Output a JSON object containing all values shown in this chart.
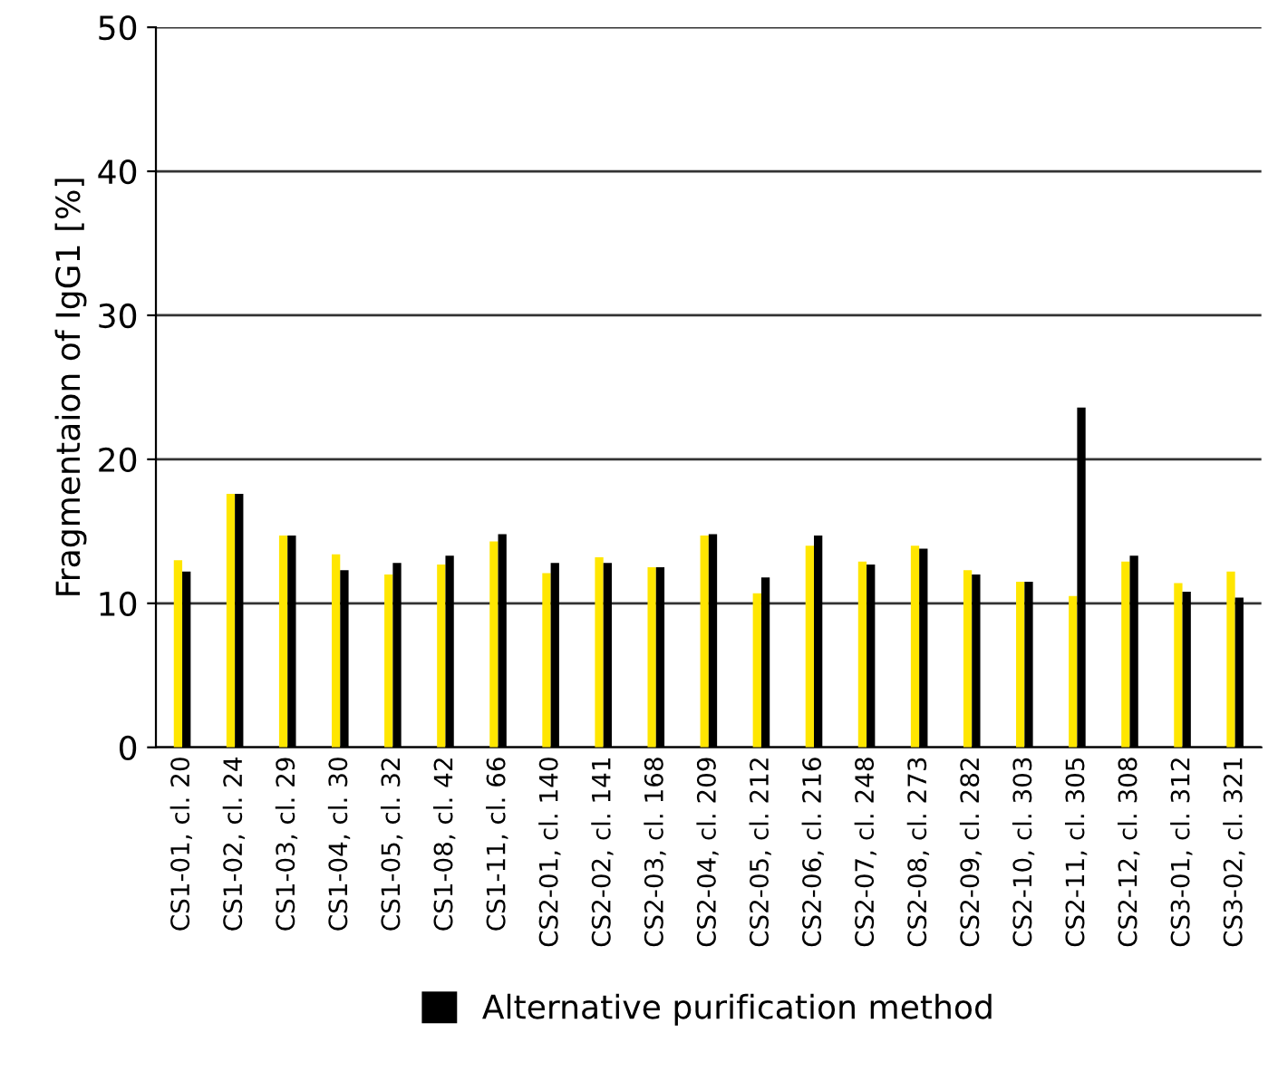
{
  "chart_data": {
    "type": "bar",
    "ylabel": "Fragmentaion of IgG1 [%]",
    "categories": [
      "CS1-01, cl. 20",
      "CS1-02, cl. 24",
      "CS1-03, cl. 29",
      "CS1-04, cl. 30",
      "CS1-05, cl. 32",
      "CS1-08, cl. 42",
      "CS1-11, cl. 66",
      "CS2-01, cl. 140",
      "CS2-02, cl. 141",
      "CS2-03, cl. 168",
      "CS2-04, cl. 209",
      "CS2-05, cl. 212",
      "CS2-06, cl. 216",
      "CS2-07, cl. 248",
      "CS2-08, cl. 273",
      "CS2-09, cl. 282",
      "CS2-10, cl. 303",
      "CS2-11, cl. 305",
      "CS2-12, cl. 308",
      "CS3-01, cl. 312",
      "CS3-02, cl. 321"
    ],
    "series": [
      {
        "color": "#ffe600",
        "values": [
          13.0,
          17.6,
          14.7,
          13.4,
          12.0,
          12.7,
          14.3,
          12.1,
          13.2,
          12.5,
          14.7,
          10.7,
          14.0,
          12.9,
          14.0,
          12.3,
          11.5,
          10.5,
          12.9,
          11.4,
          12.2
        ]
      },
      {
        "name": "Alternative purification method",
        "color": "#000000",
        "values": [
          12.2,
          17.6,
          14.7,
          12.3,
          12.8,
          13.3,
          14.8,
          12.8,
          12.8,
          12.5,
          14.8,
          11.8,
          14.7,
          12.7,
          13.8,
          12.0,
          11.5,
          23.6,
          13.3,
          10.8,
          10.4
        ]
      }
    ],
    "ylim": [
      0,
      50
    ],
    "yticks": [
      0,
      10,
      20,
      30,
      40,
      50
    ],
    "grid": "y",
    "legend": "bottom"
  }
}
